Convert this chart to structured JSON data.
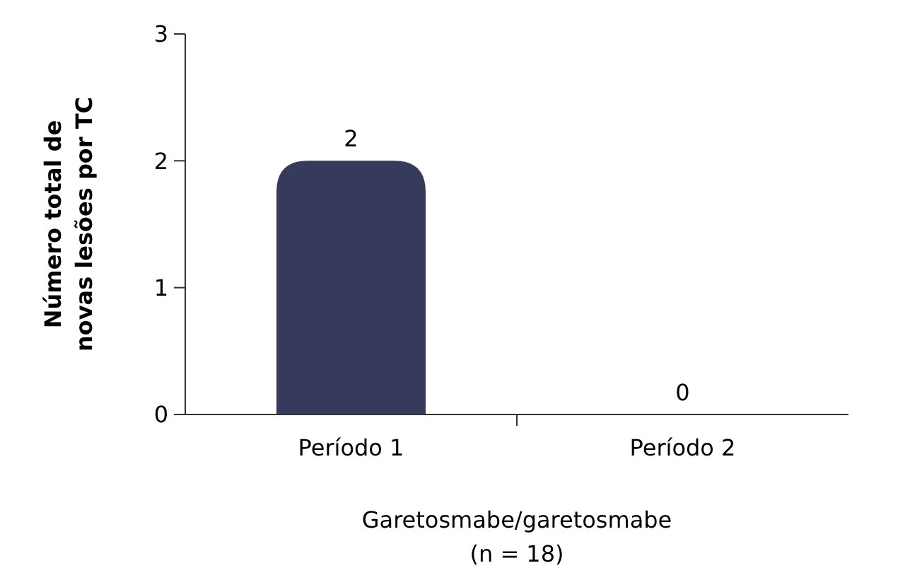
{
  "chart_data": {
    "type": "bar",
    "categories": [
      "Período 1",
      "Período 2"
    ],
    "values": [
      2,
      0
    ],
    "color": "#363b5e",
    "ylim": [
      0,
      3
    ],
    "yticks": [
      0,
      1,
      2,
      3
    ],
    "data_labels": true,
    "grid": false,
    "xlabel": "Garetosmabe/garetosmabe\n(n = 18)",
    "ylabel": "Número total de\nnovas lesões por TC"
  }
}
